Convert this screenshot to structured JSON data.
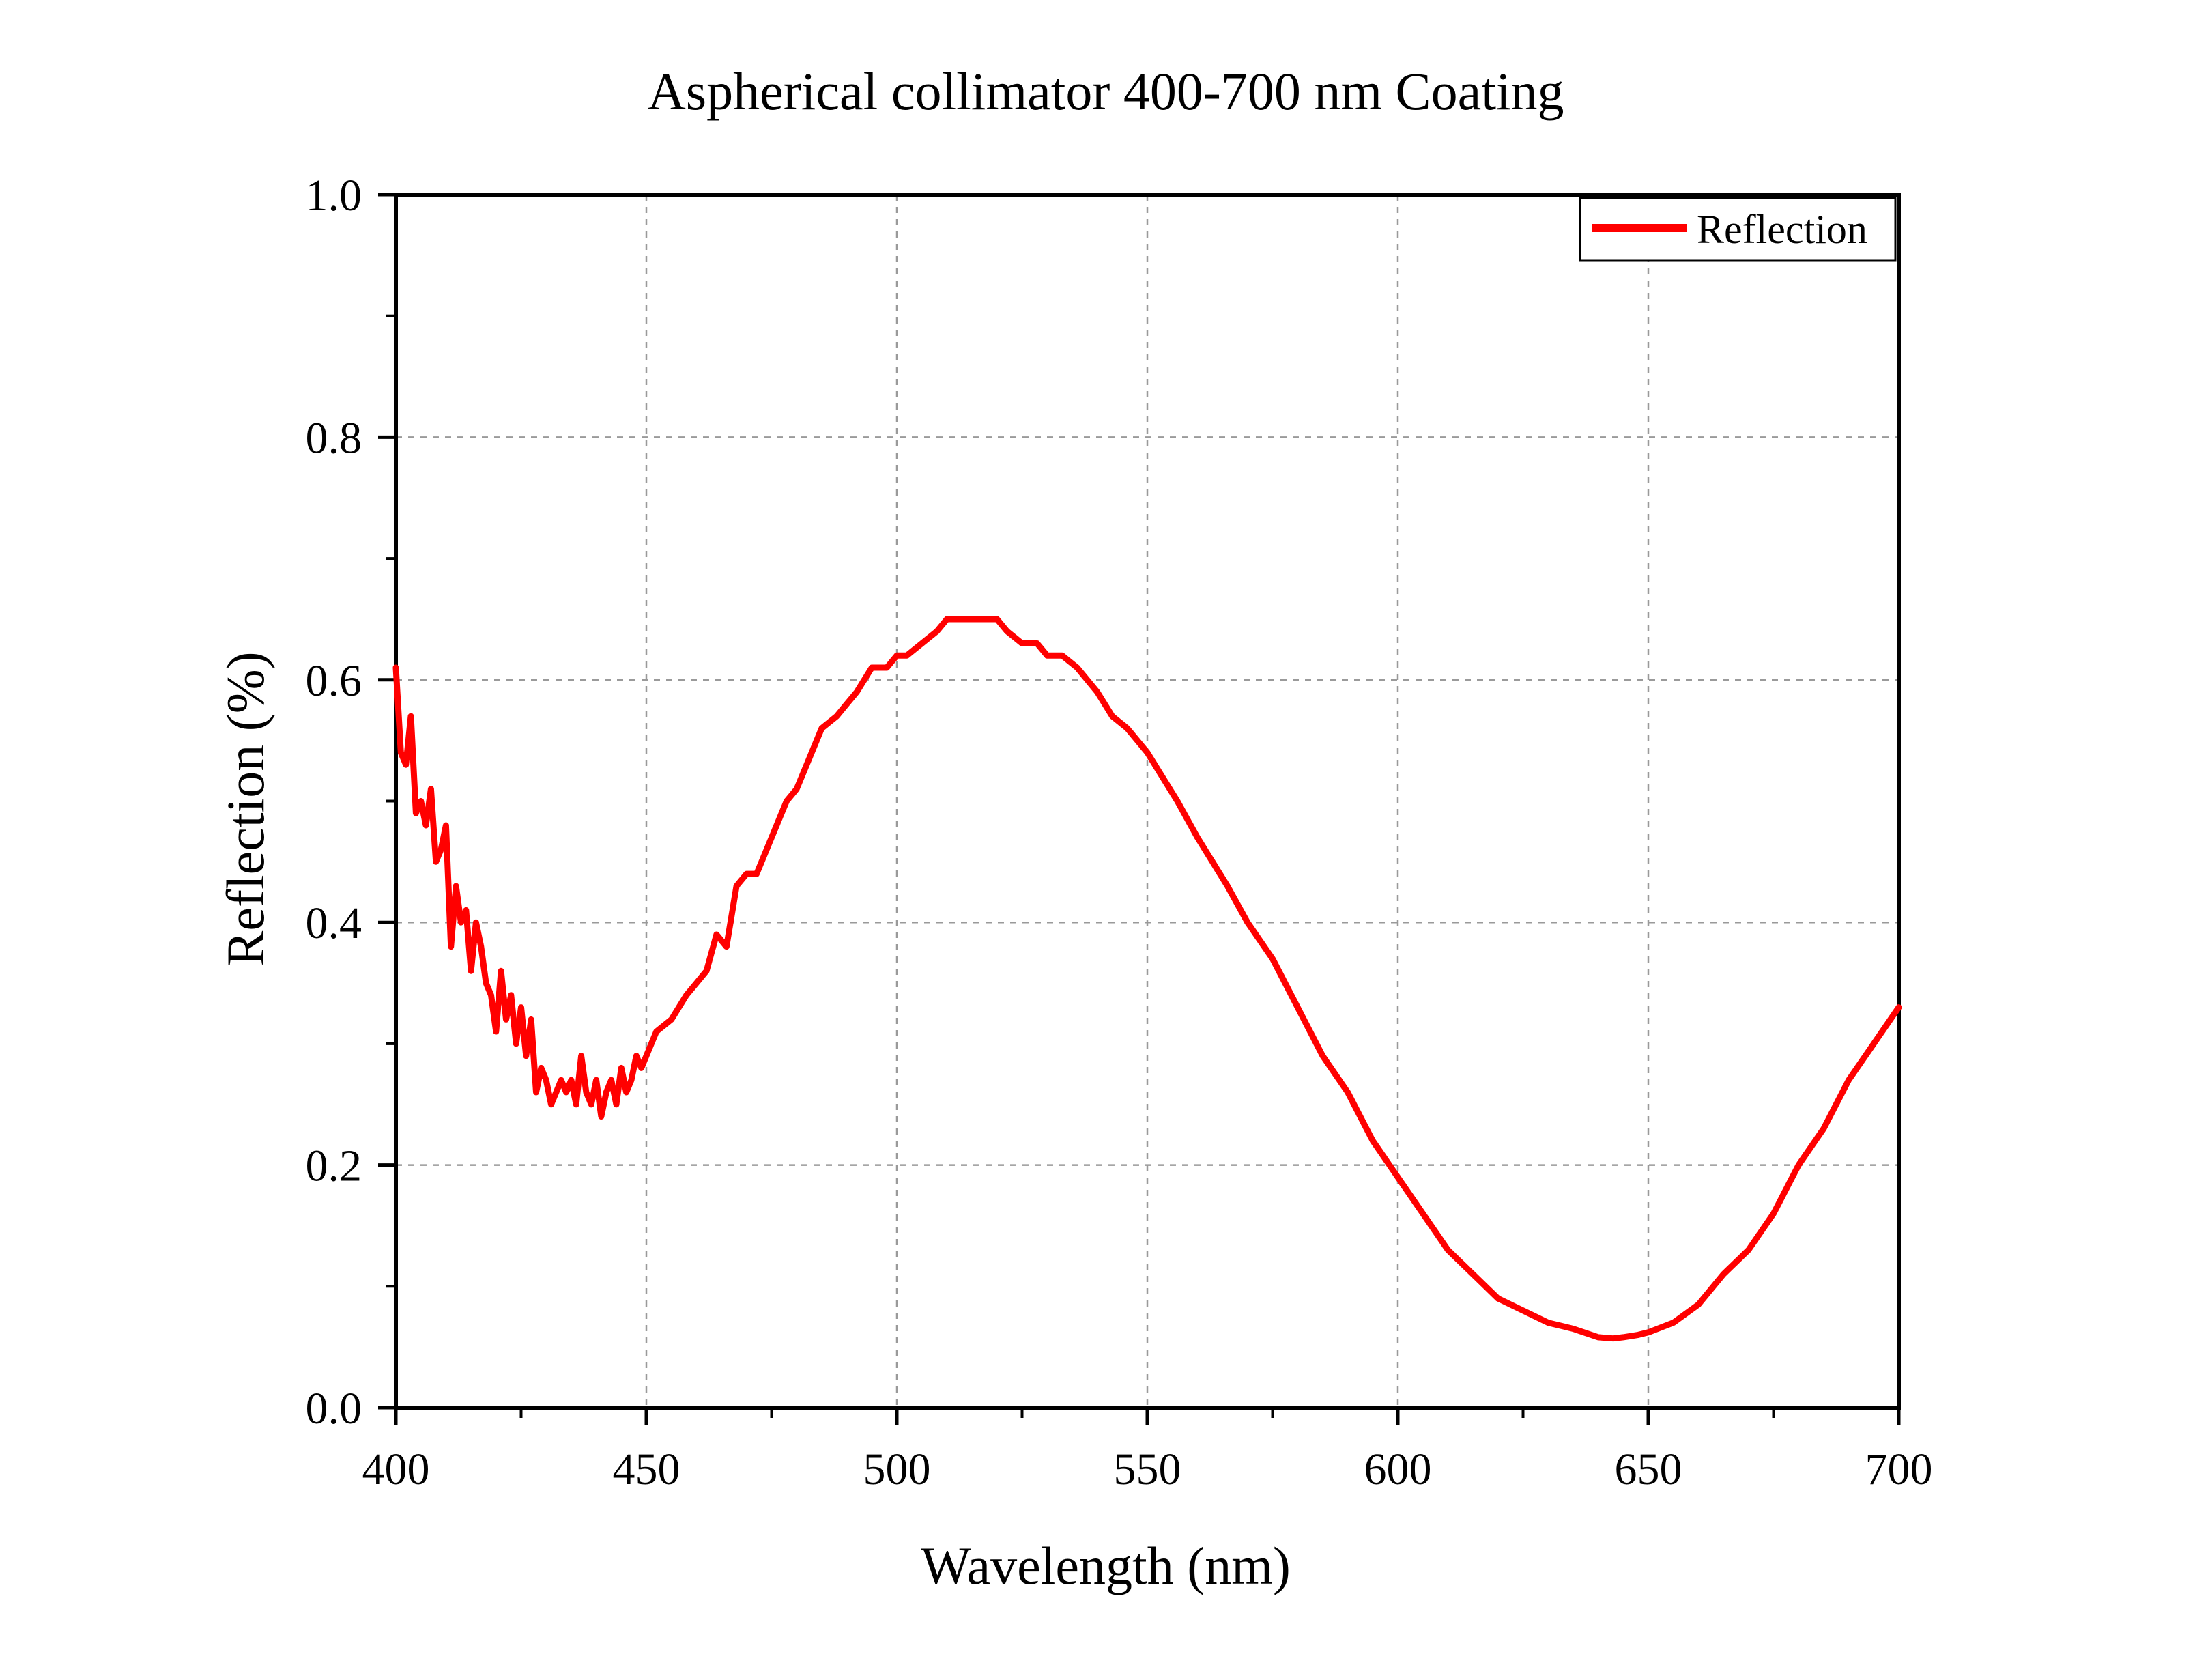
{
  "chart_data": {
    "type": "line",
    "title": "Aspherical collimator 400-700 nm Coating",
    "xlabel": "Wavelength (nm)",
    "ylabel": "Reflection (%)",
    "xlim": [
      400,
      700
    ],
    "ylim": [
      0.0,
      1.0
    ],
    "x_ticks": [
      400,
      450,
      500,
      550,
      600,
      650,
      700
    ],
    "x_tick_labels": [
      "400",
      "450",
      "500",
      "550",
      "600",
      "650",
      "700"
    ],
    "y_ticks": [
      0.0,
      0.2,
      0.4,
      0.6,
      0.8,
      1.0
    ],
    "y_tick_labels": [
      "0.0",
      "0.2",
      "0.4",
      "0.6",
      "0.8",
      "1.0"
    ],
    "grid": true,
    "legend_position": "top-right",
    "series": [
      {
        "name": "Reflection",
        "color": "#ff0000",
        "x": [
          400,
          401,
          402,
          403,
          404,
          405,
          406,
          407,
          408,
          409,
          410,
          411,
          412,
          413,
          414,
          415,
          416,
          417,
          418,
          419,
          420,
          421,
          422,
          423,
          424,
          425,
          426,
          427,
          428,
          429,
          430,
          431,
          432,
          433,
          434,
          435,
          436,
          437,
          438,
          439,
          440,
          441,
          442,
          443,
          444,
          445,
          446,
          447,
          448,
          449,
          450,
          452,
          455,
          458,
          460,
          462,
          464,
          466,
          468,
          470,
          472,
          475,
          478,
          480,
          482,
          485,
          488,
          490,
          492,
          495,
          498,
          500,
          502,
          505,
          508,
          510,
          512,
          515,
          518,
          520,
          522,
          525,
          528,
          530,
          533,
          536,
          540,
          543,
          546,
          550,
          553,
          556,
          560,
          563,
          566,
          570,
          575,
          580,
          585,
          590,
          595,
          600,
          605,
          610,
          615,
          620,
          625,
          630,
          635,
          640,
          643,
          645,
          648,
          650,
          655,
          660,
          665,
          670,
          675,
          680,
          685,
          690,
          695,
          700
        ],
        "y": [
          0.61,
          0.54,
          0.53,
          0.57,
          0.49,
          0.5,
          0.48,
          0.51,
          0.45,
          0.46,
          0.48,
          0.38,
          0.43,
          0.4,
          0.41,
          0.36,
          0.4,
          0.38,
          0.35,
          0.34,
          0.31,
          0.36,
          0.32,
          0.34,
          0.3,
          0.33,
          0.29,
          0.32,
          0.26,
          0.28,
          0.27,
          0.25,
          0.26,
          0.27,
          0.26,
          0.27,
          0.25,
          0.29,
          0.26,
          0.25,
          0.27,
          0.24,
          0.26,
          0.27,
          0.25,
          0.28,
          0.26,
          0.27,
          0.29,
          0.28,
          0.29,
          0.31,
          0.32,
          0.34,
          0.35,
          0.36,
          0.39,
          0.38,
          0.43,
          0.44,
          0.44,
          0.47,
          0.5,
          0.51,
          0.53,
          0.56,
          0.57,
          0.58,
          0.59,
          0.61,
          0.61,
          0.62,
          0.62,
          0.63,
          0.64,
          0.65,
          0.65,
          0.65,
          0.65,
          0.65,
          0.64,
          0.63,
          0.63,
          0.62,
          0.62,
          0.61,
          0.59,
          0.57,
          0.56,
          0.54,
          0.52,
          0.5,
          0.47,
          0.45,
          0.43,
          0.4,
          0.37,
          0.33,
          0.29,
          0.26,
          0.22,
          0.19,
          0.16,
          0.13,
          0.11,
          0.09,
          0.08,
          0.07,
          0.065,
          0.058,
          0.057,
          0.058,
          0.06,
          0.062,
          0.07,
          0.085,
          0.11,
          0.13,
          0.16,
          0.2,
          0.23,
          0.27,
          0.3,
          0.33
        ]
      }
    ]
  }
}
